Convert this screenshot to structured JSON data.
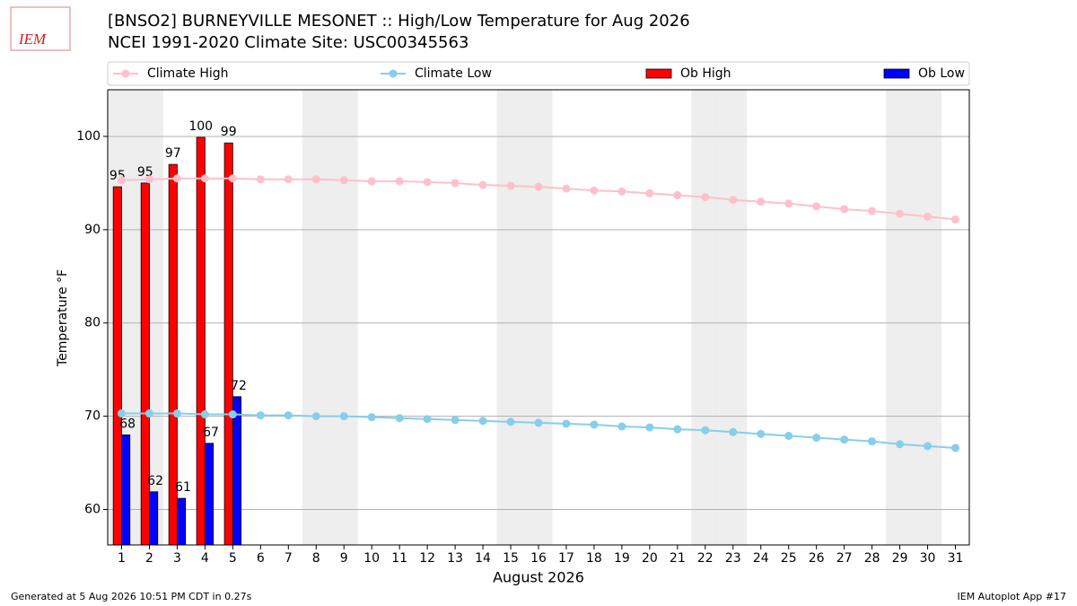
{
  "chart_data": {
    "type": "bar_line",
    "logo": "IEM",
    "title": "[BNSO2] BURNEYVILLE MESONET :: High/Low Temperature for Aug 2026",
    "subtitle": "NCEI 1991-2020 Climate Site: USC00345563",
    "xlabel": "August 2026",
    "ylabel": "Temperature °F",
    "footer_left": "Generated at 5 Aug 2026 10:51 PM CDT in 0.27s",
    "footer_right": "IEM Autoplot App #17",
    "x": [
      1,
      2,
      3,
      4,
      5,
      6,
      7,
      8,
      9,
      10,
      11,
      12,
      13,
      14,
      15,
      16,
      17,
      18,
      19,
      20,
      21,
      22,
      23,
      24,
      25,
      26,
      27,
      28,
      29,
      30,
      31
    ],
    "xlim": [
      0.5,
      31.5
    ],
    "xticks": [
      1,
      2,
      3,
      4,
      5,
      6,
      7,
      8,
      9,
      10,
      11,
      12,
      13,
      14,
      15,
      16,
      17,
      18,
      19,
      20,
      21,
      22,
      23,
      24,
      25,
      26,
      27,
      28,
      29,
      30,
      31
    ],
    "ylim": [
      56.2,
      105
    ],
    "yticks": [
      60,
      70,
      80,
      90,
      100
    ],
    "grid": true,
    "legend": "top",
    "weekend_days": [
      1,
      2,
      8,
      9,
      15,
      16,
      22,
      23,
      29,
      30
    ],
    "weekend_color": "#eeeeee",
    "series": [
      {
        "name": "Climate High",
        "type": "line",
        "color": "#ffc0cb",
        "values": [
          95.3,
          95.4,
          95.5,
          95.5,
          95.5,
          95.4,
          95.4,
          95.4,
          95.3,
          95.2,
          95.2,
          95.1,
          95.0,
          94.8,
          94.7,
          94.6,
          94.4,
          94.2,
          94.1,
          93.9,
          93.7,
          93.5,
          93.2,
          93.0,
          92.8,
          92.5,
          92.2,
          92.0,
          91.7,
          91.4,
          91.1
        ]
      },
      {
        "name": "Climate Low",
        "type": "line",
        "color": "#87ceeb",
        "values": [
          70.3,
          70.3,
          70.3,
          70.2,
          70.2,
          70.1,
          70.1,
          70.0,
          70.0,
          69.9,
          69.8,
          69.7,
          69.6,
          69.5,
          69.4,
          69.3,
          69.2,
          69.1,
          68.9,
          68.8,
          68.6,
          68.5,
          68.3,
          68.1,
          67.9,
          67.7,
          67.5,
          67.3,
          67.0,
          66.8,
          66.6
        ]
      },
      {
        "name": "Ob High",
        "type": "bar",
        "color": "#ff0000",
        "values": [
          94.6,
          95,
          97,
          99.9,
          99.3,
          null,
          null,
          null,
          null,
          null,
          null,
          null,
          null,
          null,
          null,
          null,
          null,
          null,
          null,
          null,
          null,
          null,
          null,
          null,
          null,
          null,
          null,
          null,
          null,
          null,
          null
        ],
        "value_labels": [
          "95",
          "95",
          "97",
          "100",
          "99",
          null,
          null,
          null,
          null,
          null,
          null,
          null,
          null,
          null,
          null,
          null,
          null,
          null,
          null,
          null,
          null,
          null,
          null,
          null,
          null,
          null,
          null,
          null,
          null,
          null,
          null
        ]
      },
      {
        "name": "Ob Low",
        "type": "bar",
        "color": "#0000ff",
        "values": [
          68,
          61.9,
          61.2,
          67.1,
          72.1,
          null,
          null,
          null,
          null,
          null,
          null,
          null,
          null,
          null,
          null,
          null,
          null,
          null,
          null,
          null,
          null,
          null,
          null,
          null,
          null,
          null,
          null,
          null,
          null,
          null,
          null
        ],
        "value_labels": [
          "68",
          "62",
          "61",
          "67",
          "72",
          null,
          null,
          null,
          null,
          null,
          null,
          null,
          null,
          null,
          null,
          null,
          null,
          null,
          null,
          null,
          null,
          null,
          null,
          null,
          null,
          null,
          null,
          null,
          null,
          null,
          null
        ]
      }
    ]
  }
}
